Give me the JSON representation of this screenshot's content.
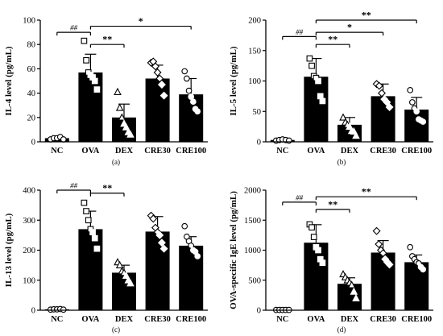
{
  "chart_data": [
    {
      "panel": "(a)",
      "type": "bar",
      "ylabel": "IL-4 level (pg/mL)",
      "ylim": [
        0,
        100
      ],
      "yticks": [
        0,
        20,
        40,
        60,
        80,
        100
      ],
      "categories": [
        "NC",
        "OVA",
        "DEX",
        "CRE30",
        "CRE100"
      ],
      "values": [
        3,
        57,
        20,
        52,
        39
      ],
      "errors": [
        1.5,
        15,
        11,
        11,
        13
      ],
      "marker": [
        "circle",
        "square",
        "triangle",
        "diamond",
        "circle"
      ],
      "points": [
        [
          2,
          3,
          3,
          4,
          2
        ],
        [
          83,
          67,
          57,
          55,
          53,
          50,
          43
        ],
        [
          41,
          28,
          20,
          15,
          12,
          8,
          6
        ],
        [
          65,
          66,
          62,
          57,
          52,
          47,
          38
        ],
        [
          58,
          52,
          42,
          37,
          33,
          27,
          25
        ]
      ],
      "significance": [
        {
          "from": "NC",
          "to": "OVA",
          "label": "##",
          "y": 90
        },
        {
          "from": "OVA",
          "to": "DEX",
          "label": "**",
          "y": 80
        },
        {
          "from": "OVA",
          "to": "CRE100",
          "label": "*",
          "y": 95
        }
      ]
    },
    {
      "panel": "(b)",
      "type": "bar",
      "ylabel": "IL-5 level (pg/mL)",
      "ylim": [
        0,
        200
      ],
      "yticks": [
        0,
        50,
        100,
        150,
        200
      ],
      "categories": [
        "NC",
        "OVA",
        "DEX",
        "CRE30",
        "CRE100"
      ],
      "values": [
        3,
        107,
        28,
        75,
        53
      ],
      "errors": [
        1.5,
        30,
        12,
        20,
        20
      ],
      "marker": [
        "circle",
        "square",
        "triangle",
        "diamond",
        "circle"
      ],
      "points": [
        [
          2,
          3,
          4,
          3,
          2
        ],
        [
          137,
          125,
          108,
          105,
          100,
          75,
          67
        ],
        [
          40,
          32,
          28,
          25,
          18,
          17,
          10
        ],
        [
          95,
          92,
          80,
          70,
          65,
          57
        ],
        [
          85,
          65,
          55,
          50,
          37,
          35,
          33
        ]
      ],
      "significance": [
        {
          "from": "NC",
          "to": "OVA",
          "label": "##",
          "y": 173
        },
        {
          "from": "OVA",
          "to": "DEX",
          "label": "**",
          "y": 160
        },
        {
          "from": "OVA",
          "to": "CRE30",
          "label": "*",
          "y": 180
        },
        {
          "from": "OVA",
          "to": "CRE100",
          "label": "**",
          "y": 200
        }
      ]
    },
    {
      "panel": "(c)",
      "type": "bar",
      "ylabel": "IL-13 level (pg/mL)",
      "ylim": [
        0,
        400
      ],
      "yticks": [
        0,
        100,
        200,
        300,
        400
      ],
      "categories": [
        "NC",
        "OVA",
        "DEX",
        "CRE30",
        "CRE100"
      ],
      "values": [
        3,
        270,
        125,
        262,
        215
      ],
      "errors": [
        1.5,
        60,
        25,
        50,
        30
      ],
      "marker": [
        "circle",
        "square",
        "triangle",
        "diamond",
        "circle"
      ],
      "points": [
        [
          2,
          3,
          3,
          4,
          2
        ],
        [
          358,
          330,
          300,
          270,
          260,
          240,
          205
        ],
        [
          160,
          150,
          130,
          125,
          115,
          100,
          90
        ],
        [
          315,
          305,
          275,
          260,
          250,
          225,
          205
        ],
        [
          280,
          245,
          230,
          215,
          200,
          195,
          180
        ]
      ],
      "significance": [
        {
          "from": "NC",
          "to": "OVA",
          "label": "##",
          "y": 400
        },
        {
          "from": "OVA",
          "to": "DEX",
          "label": "**",
          "y": 390
        }
      ]
    },
    {
      "panel": "(d)",
      "type": "bar",
      "ylabel": "OVA-specific IgE level (pg/mL)",
      "ylim": [
        0,
        2000
      ],
      "yticks": [
        0,
        500,
        1000,
        1500,
        2000
      ],
      "categories": [
        "NC",
        "OVA",
        "DEX",
        "CRE30",
        "CRE100"
      ],
      "values": [
        5,
        1125,
        440,
        960,
        800
      ],
      "errors": [
        3,
        300,
        100,
        200,
        120
      ],
      "marker": [
        "circle",
        "square",
        "triangle",
        "diamond",
        "circle"
      ],
      "points": [
        [
          5,
          5,
          5,
          5,
          5
        ],
        [
          1430,
          1380,
          1220,
          1050,
          1000,
          850,
          790
        ],
        [
          600,
          550,
          500,
          460,
          420,
          310,
          200
        ],
        [
          1320,
          1100,
          1000,
          950,
          850,
          800,
          760
        ],
        [
          1050,
          900,
          850,
          800,
          780,
          720,
          680
        ]
      ],
      "significance": [
        {
          "from": "NC",
          "to": "OVA",
          "label": "##",
          "y": 1800
        },
        {
          "from": "OVA",
          "to": "DEX",
          "label": "**",
          "y": 1680
        },
        {
          "from": "OVA",
          "to": "CRE100",
          "label": "**",
          "y": 1890
        }
      ]
    }
  ]
}
